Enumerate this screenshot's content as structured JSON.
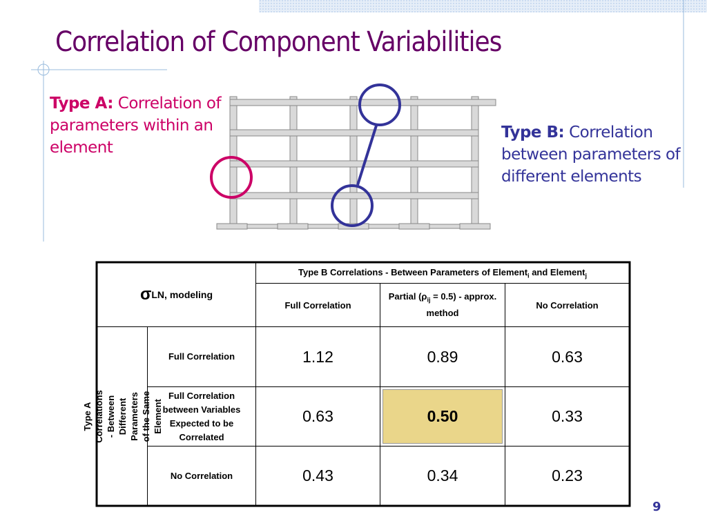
{
  "title": "Correlation of Component Variabilities",
  "type_a": {
    "label": "Type A:",
    "text": "Correlation of parameters within an element"
  },
  "type_b": {
    "label": "Type B:",
    "text": "Correlation between parameters of different elements"
  },
  "table": {
    "corner": {
      "symbol": "σ",
      "subscript": "LN, modeling"
    },
    "column_group": {
      "text": "Type B Correlations - Between Parameters of Element",
      "sub_1": "i",
      "middle": "and Element",
      "sub_2": "j"
    },
    "columns": [
      {
        "text": "Full Correlation"
      },
      {
        "text": "Partial (ρ",
        "sub": "ij",
        "rest": "= 0.5) - approx. method"
      },
      {
        "text": "No Correlation"
      }
    ],
    "row_group": "Type A Correlations - Between Different Parameters of the Same Element",
    "rows": [
      {
        "label": "Full Correlation",
        "values": [
          "1.12",
          "0.89",
          "0.63"
        ]
      },
      {
        "label": "Full Correlation between Variables Expected to be Correlated",
        "values": [
          "0.63",
          "0.50",
          "0.33"
        ]
      },
      {
        "label": "No Correlation",
        "values": [
          "0.43",
          "0.34",
          "0.23"
        ]
      }
    ]
  },
  "page_number": "9"
}
